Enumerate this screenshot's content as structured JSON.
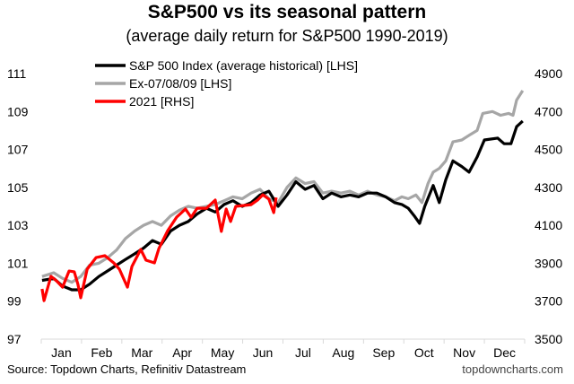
{
  "chart_data": {
    "type": "line",
    "title": "S&P500 vs its seasonal pattern",
    "subtitle": "(average daily return for S&P500 1990-2019)",
    "x_categories": [
      "Jan",
      "Feb",
      "Mar",
      "Apr",
      "May",
      "Jun",
      "Jul",
      "Aug",
      "Sep",
      "Oct",
      "Nov",
      "Dec"
    ],
    "x_unit": "months",
    "xlim": [
      0,
      12
    ],
    "y_left": {
      "ticks": [
        "97",
        "99",
        "101",
        "103",
        "105",
        "107",
        "109",
        "111"
      ],
      "ylim": [
        97,
        111
      ]
    },
    "y_right": {
      "ticks": [
        "3500",
        "3700",
        "3900",
        "4100",
        "4300",
        "4500",
        "4700",
        "4900"
      ],
      "ylim": [
        3500,
        4900
      ]
    },
    "grid": false,
    "legend_placement": "top-left",
    "series": [
      {
        "name": "S&P 500 Index (average historical) [LHS]",
        "axis": "left",
        "color": "#000000",
        "x": [
          0.02,
          0.31,
          0.53,
          0.76,
          0.98,
          1.2,
          1.43,
          1.65,
          1.87,
          2.09,
          2.32,
          2.54,
          2.76,
          2.98,
          3.21,
          3.43,
          3.65,
          3.87,
          4.1,
          4.32,
          4.54,
          4.76,
          4.99,
          5.21,
          5.43,
          5.65,
          5.88,
          6.1,
          6.32,
          6.55,
          6.77,
          6.99,
          7.21,
          7.44,
          7.66,
          7.88,
          8.1,
          8.33,
          8.55,
          8.77,
          8.95,
          9.11,
          9.26,
          9.39,
          9.52,
          9.73,
          9.88,
          10.04,
          10.22,
          10.44,
          10.62,
          10.82,
          11.0,
          11.33,
          11.49,
          11.66,
          11.8,
          11.95
        ],
        "y": [
          100.1,
          100.2,
          99.8,
          99.6,
          99.6,
          99.9,
          100.3,
          100.6,
          100.9,
          101.2,
          101.5,
          101.8,
          102.2,
          102.0,
          102.7,
          103.0,
          103.2,
          103.6,
          103.9,
          103.7,
          104.1,
          104.3,
          104.0,
          104.2,
          104.6,
          104.8,
          104.0,
          104.6,
          105.3,
          104.9,
          105.1,
          104.4,
          104.7,
          104.5,
          104.6,
          104.5,
          104.7,
          104.7,
          104.5,
          104.2,
          104.1,
          103.9,
          103.5,
          103.1,
          104.0,
          105.1,
          104.2,
          105.4,
          106.4,
          106.1,
          105.8,
          106.6,
          107.5,
          107.6,
          107.3,
          107.3,
          108.2,
          108.5
        ]
      },
      {
        "name": "Ex-07/08/09 [LHS]",
        "axis": "left",
        "color": "#a6a6a6",
        "x": [
          0.02,
          0.31,
          0.53,
          0.76,
          0.98,
          1.2,
          1.43,
          1.65,
          1.87,
          2.09,
          2.32,
          2.54,
          2.76,
          2.98,
          3.21,
          3.43,
          3.65,
          3.87,
          4.1,
          4.32,
          4.54,
          4.76,
          4.99,
          5.21,
          5.43,
          5.65,
          5.88,
          6.1,
          6.32,
          6.55,
          6.77,
          6.99,
          7.21,
          7.44,
          7.66,
          7.88,
          8.1,
          8.33,
          8.55,
          8.77,
          8.95,
          9.11,
          9.3,
          9.45,
          9.6,
          9.73,
          9.88,
          10.04,
          10.22,
          10.44,
          10.66,
          10.82,
          10.96,
          11.2,
          11.4,
          11.6,
          11.71,
          11.8,
          11.95
        ],
        "y": [
          100.3,
          100.5,
          100.2,
          100.0,
          100.3,
          100.9,
          101.0,
          101.3,
          101.7,
          102.3,
          102.7,
          103.0,
          103.2,
          103.0,
          103.5,
          103.8,
          104.0,
          103.9,
          104.0,
          104.1,
          104.3,
          104.5,
          104.4,
          104.7,
          104.9,
          104.4,
          104.2,
          105.0,
          105.5,
          105.2,
          105.3,
          104.7,
          104.8,
          104.7,
          104.8,
          104.6,
          104.8,
          104.6,
          104.5,
          104.3,
          104.5,
          104.4,
          104.6,
          104.2,
          105.2,
          105.8,
          106.0,
          106.4,
          107.4,
          107.5,
          107.8,
          108.0,
          108.9,
          109.0,
          108.8,
          108.9,
          108.8,
          109.6,
          110.1
        ]
      },
      {
        "name": "2021 [RHS]",
        "axis": "right",
        "color": "#ff0000",
        "x": [
          0.02,
          0.07,
          0.24,
          0.38,
          0.53,
          0.69,
          0.82,
          0.91,
          0.98,
          1.14,
          1.36,
          1.58,
          1.8,
          1.94,
          2.14,
          2.25,
          2.47,
          2.6,
          2.81,
          2.92,
          3.14,
          3.36,
          3.58,
          3.72,
          3.87,
          4.1,
          4.32,
          4.47,
          4.59,
          4.7,
          4.83,
          5.21,
          5.37,
          5.5,
          5.65,
          5.77,
          5.83
        ],
        "y": [
          3765,
          3703,
          3831,
          3807,
          3774,
          3859,
          3855,
          3789,
          3718,
          3869,
          3930,
          3940,
          3902,
          3869,
          3774,
          3883,
          3973,
          3916,
          3902,
          3978,
          4072,
          4143,
          4186,
          4143,
          4190,
          4190,
          4233,
          4068,
          4186,
          4120,
          4200,
          4209,
          4233,
          4261,
          4238,
          4167,
          4247
        ]
      }
    ]
  },
  "footer": {
    "source": "Source: Topdown Charts, Refinitiv Datastream",
    "site": "topdowncharts.com"
  }
}
